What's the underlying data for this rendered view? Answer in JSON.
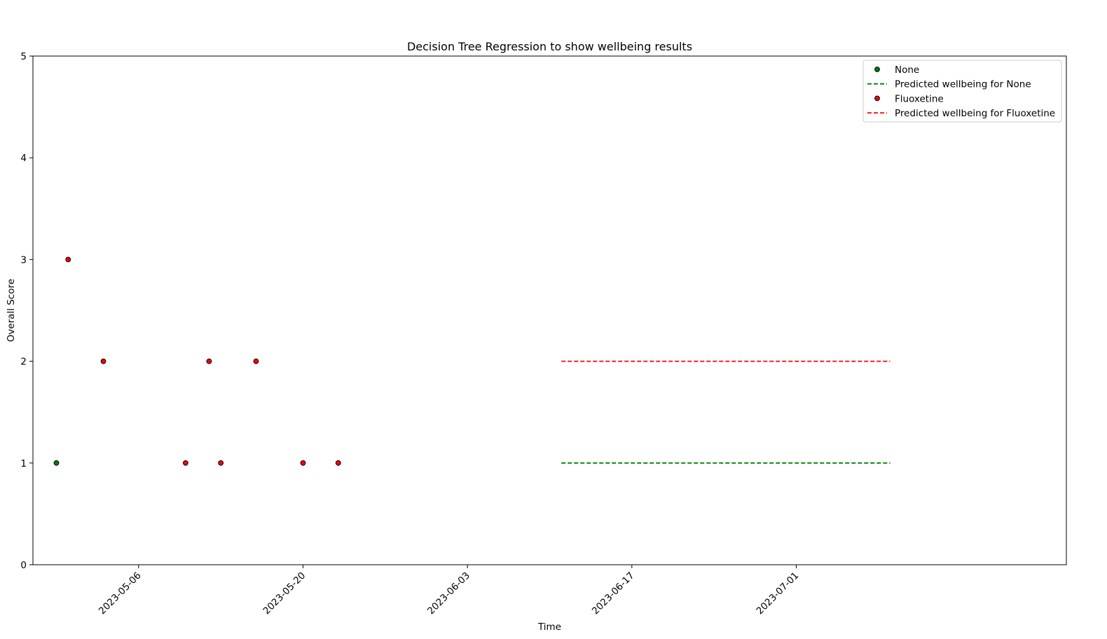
{
  "chart_data": {
    "type": "scatter",
    "title": "Decision Tree Regression to show wellbeing results",
    "xlabel": "Time",
    "ylabel": "Overall Score",
    "xlim": [
      "2023-04-27",
      "2023-07-24"
    ],
    "ylim": [
      0,
      5
    ],
    "x_ticks": [
      "2023-05-06",
      "2023-05-20",
      "2023-06-03",
      "2023-06-17",
      "2023-07-01"
    ],
    "y_ticks": [
      "0",
      "1",
      "2",
      "3",
      "4",
      "5"
    ],
    "x_tick_rotation_deg": 45,
    "grid": false,
    "legend_position": "top-right",
    "series": [
      {
        "name": "None",
        "kind": "scatter",
        "color": "#008000",
        "points": [
          {
            "x": "2023-04-29",
            "y": 1
          }
        ]
      },
      {
        "name": "Predicted wellbeing for None",
        "kind": "line",
        "dash": "dashed",
        "color": "#008000",
        "points": [
          {
            "x": "2023-06-11",
            "y": 1
          },
          {
            "x": "2023-07-09",
            "y": 1
          }
        ]
      },
      {
        "name": "Fluoxetine",
        "kind": "scatter",
        "color": "#ff0000",
        "points": [
          {
            "x": "2023-04-30",
            "y": 3
          },
          {
            "x": "2023-05-03",
            "y": 2
          },
          {
            "x": "2023-05-10",
            "y": 1
          },
          {
            "x": "2023-05-12",
            "y": 2
          },
          {
            "x": "2023-05-13",
            "y": 1
          },
          {
            "x": "2023-05-16",
            "y": 2
          },
          {
            "x": "2023-05-20",
            "y": 1
          },
          {
            "x": "2023-05-23",
            "y": 1
          }
        ]
      },
      {
        "name": "Predicted wellbeing for Fluoxetine",
        "kind": "line",
        "dash": "dashed",
        "color": "#ff0000",
        "points": [
          {
            "x": "2023-06-11",
            "y": 2
          },
          {
            "x": "2023-07-09",
            "y": 2
          }
        ]
      }
    ]
  }
}
